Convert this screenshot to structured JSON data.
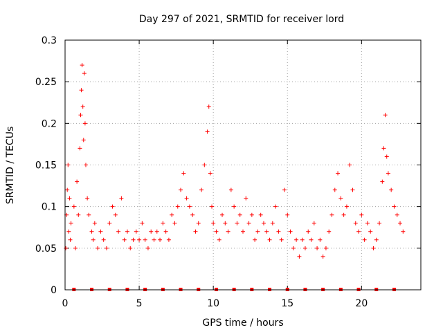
{
  "chart_data": {
    "type": "scatter",
    "title": "Day 297 of 2021, SRMTID for receiver lord",
    "xlabel": "GPS time / hours",
    "ylabel": "SRMTID / TECUs",
    "xlim": [
      0,
      24
    ],
    "ylim": [
      0,
      0.3
    ],
    "grid": true,
    "x_ticks": [
      0,
      5,
      10,
      15,
      20
    ],
    "x_tick_labels": [
      "0",
      "5",
      "10",
      "15",
      "20"
    ],
    "y_ticks": [
      0,
      0.05,
      0.1,
      0.15,
      0.2,
      0.25,
      0.3
    ],
    "y_tick_labels": [
      "0",
      "0.05",
      "0.1",
      "0.15",
      "0.2",
      "0.25",
      "0.3"
    ],
    "marker": "plus",
    "color": "#ff0000",
    "series": [
      {
        "name": "SRMTID",
        "x": [
          0.05,
          0.1,
          0.15,
          0.2,
          0.25,
          0.3,
          0.35,
          0.4,
          0.6,
          0.7,
          0.8,
          0.9,
          1.0,
          1.05,
          1.1,
          1.15,
          1.2,
          1.25,
          1.3,
          1.35,
          1.4,
          1.5,
          1.6,
          1.8,
          1.9,
          2.0,
          2.2,
          2.4,
          2.6,
          2.8,
          3.0,
          3.2,
          3.4,
          3.6,
          3.8,
          4.0,
          4.2,
          4.4,
          4.6,
          4.8,
          5.0,
          5.2,
          5.4,
          5.6,
          5.8,
          6.0,
          6.2,
          6.4,
          6.6,
          6.8,
          7.0,
          7.2,
          7.4,
          7.6,
          7.8,
          8.0,
          8.2,
          8.4,
          8.6,
          8.8,
          9.0,
          9.2,
          9.4,
          9.6,
          9.7,
          9.8,
          9.9,
          10.0,
          10.2,
          10.4,
          10.6,
          10.8,
          11.0,
          11.2,
          11.4,
          11.6,
          11.8,
          12.0,
          12.2,
          12.4,
          12.6,
          12.8,
          13.0,
          13.2,
          13.4,
          13.6,
          13.8,
          14.0,
          14.2,
          14.4,
          14.6,
          14.8,
          15.0,
          15.2,
          15.4,
          15.6,
          15.8,
          16.0,
          16.2,
          16.4,
          16.6,
          16.8,
          17.0,
          17.2,
          17.4,
          17.6,
          17.8,
          18.0,
          18.2,
          18.4,
          18.6,
          18.8,
          19.0,
          19.2,
          19.4,
          19.6,
          19.8,
          20.0,
          20.2,
          20.4,
          20.6,
          20.8,
          21.0,
          21.2,
          21.4,
          21.5,
          21.6,
          21.7,
          21.8,
          22.0,
          22.2,
          22.4,
          22.6,
          22.8
        ],
        "y": [
          0.05,
          0.09,
          0.12,
          0.15,
          0.07,
          0.11,
          0.06,
          0.08,
          0.1,
          0.05,
          0.13,
          0.09,
          0.17,
          0.21,
          0.24,
          0.27,
          0.22,
          0.18,
          0.26,
          0.2,
          0.15,
          0.11,
          0.09,
          0.07,
          0.06,
          0.08,
          0.05,
          0.07,
          0.06,
          0.05,
          0.08,
          0.1,
          0.09,
          0.07,
          0.11,
          0.06,
          0.07,
          0.05,
          0.06,
          0.07,
          0.06,
          0.08,
          0.06,
          0.05,
          0.07,
          0.06,
          0.07,
          0.06,
          0.08,
          0.07,
          0.06,
          0.09,
          0.08,
          0.1,
          0.12,
          0.14,
          0.11,
          0.1,
          0.09,
          0.07,
          0.08,
          0.12,
          0.15,
          0.19,
          0.22,
          0.14,
          0.1,
          0.08,
          0.07,
          0.06,
          0.09,
          0.08,
          0.07,
          0.12,
          0.1,
          0.08,
          0.09,
          0.07,
          0.11,
          0.08,
          0.09,
          0.06,
          0.07,
          0.09,
          0.08,
          0.07,
          0.06,
          0.08,
          0.1,
          0.07,
          0.06,
          0.12,
          0.09,
          0.07,
          0.05,
          0.06,
          0.04,
          0.06,
          0.05,
          0.07,
          0.06,
          0.08,
          0.05,
          0.06,
          0.04,
          0.05,
          0.07,
          0.09,
          0.12,
          0.14,
          0.11,
          0.09,
          0.1,
          0.15,
          0.12,
          0.08,
          0.07,
          0.09,
          0.06,
          0.08,
          0.07,
          0.05,
          0.06,
          0.08,
          0.13,
          0.17,
          0.21,
          0.16,
          0.14,
          0.12,
          0.1,
          0.09,
          0.08,
          0.07
        ]
      }
    ],
    "bottom_markers_x": [
      0.6,
      1.8,
      3.0,
      4.2,
      5.4,
      6.6,
      7.8,
      9.0,
      10.2,
      11.4,
      12.6,
      13.8,
      15.0,
      16.2,
      17.4,
      18.6,
      19.8,
      21.0,
      22.2
    ]
  }
}
